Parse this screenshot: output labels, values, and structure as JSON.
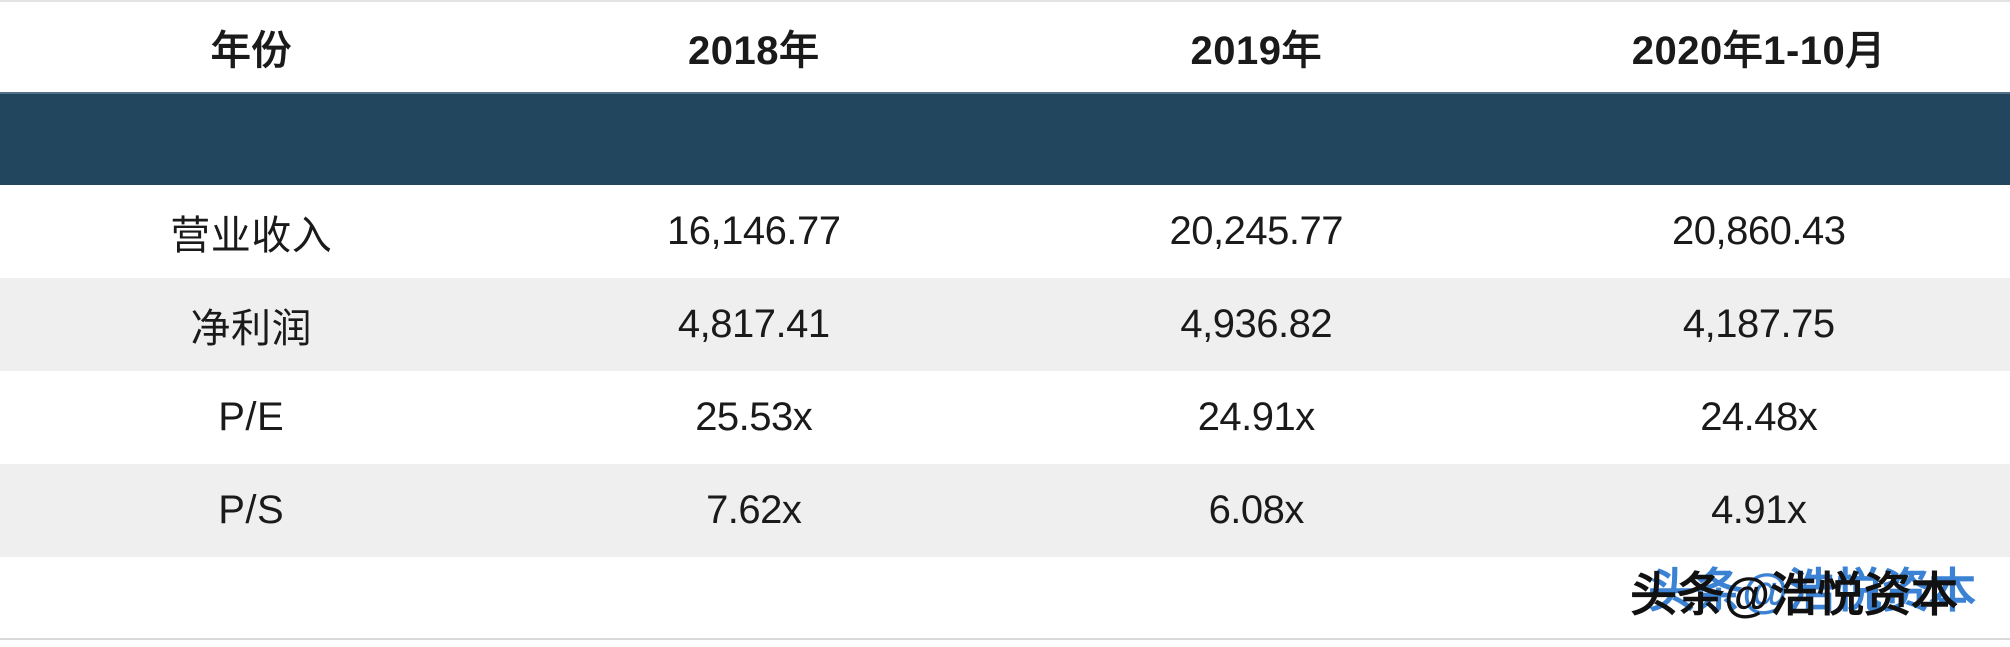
{
  "table": {
    "header": [
      "年份",
      "2018年",
      "2019年",
      "2020年1-10月"
    ],
    "rows": [
      {
        "label": "营业收入",
        "values": [
          "16,146.77",
          "20,245.77",
          "20,860.43"
        ]
      },
      {
        "label": "净利润",
        "values": [
          "4,817.41",
          "4,936.82",
          "4,187.75"
        ]
      },
      {
        "label": "P/E",
        "values": [
          "25.53x",
          "24.91x",
          "24.48x"
        ]
      },
      {
        "label": "P/S",
        "values": [
          "7.62x",
          "6.08x",
          "4.91x"
        ]
      }
    ]
  },
  "watermark": {
    "text": "头条@浩悦资本"
  },
  "colors": {
    "band": "#21465e",
    "band_top_edge": "#527089",
    "stripe": "#efefef",
    "text": "#1a1a1a",
    "watermark_blue": "#3b82d4",
    "bottom_line": "#d9d9d9"
  },
  "chart_data": {
    "type": "table",
    "title": "",
    "columns": [
      "年份",
      "2018年",
      "2019年",
      "2020年1-10月"
    ],
    "rows": [
      [
        "营业收入",
        "16,146.77",
        "20,245.77",
        "20,860.43"
      ],
      [
        "净利润",
        "4,817.41",
        "4,936.82",
        "4,187.75"
      ],
      [
        "P/E",
        "25.53x",
        "24.91x",
        "24.48x"
      ],
      [
        "P/S",
        "7.62x",
        "6.08x",
        "4.91x"
      ]
    ],
    "notes": "zebra-striped financial table; solid dark navy band row between header and data"
  }
}
